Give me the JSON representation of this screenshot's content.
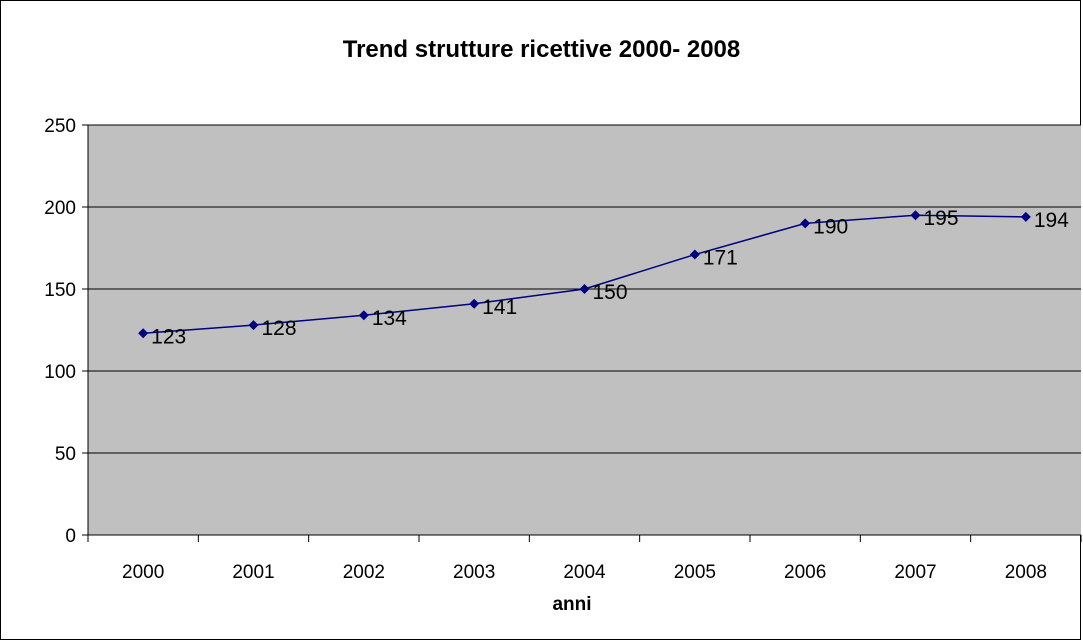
{
  "chart_data": {
    "type": "line",
    "title": "Trend strutture ricettive 2000- 2008",
    "xlabel": "anni",
    "ylabel": "",
    "categories": [
      "2000",
      "2001",
      "2002",
      "2003",
      "2004",
      "2005",
      "2006",
      "2007",
      "2008"
    ],
    "series": [
      {
        "values": [
          123,
          128,
          134,
          141,
          150,
          171,
          190,
          195,
          194
        ]
      }
    ],
    "data_labels": [
      "123",
      "128",
      "134",
      "141",
      "150",
      "171",
      "190",
      "195",
      "194"
    ],
    "ylim": [
      0,
      250
    ],
    "yticks": [
      "0",
      "50",
      "100",
      "150",
      "200",
      "250"
    ],
    "grid": true,
    "legend": "none",
    "colors": {
      "plot_background": "#c0c0c0",
      "line": "#000080",
      "marker": "#000080",
      "gridline": "#000000"
    }
  }
}
